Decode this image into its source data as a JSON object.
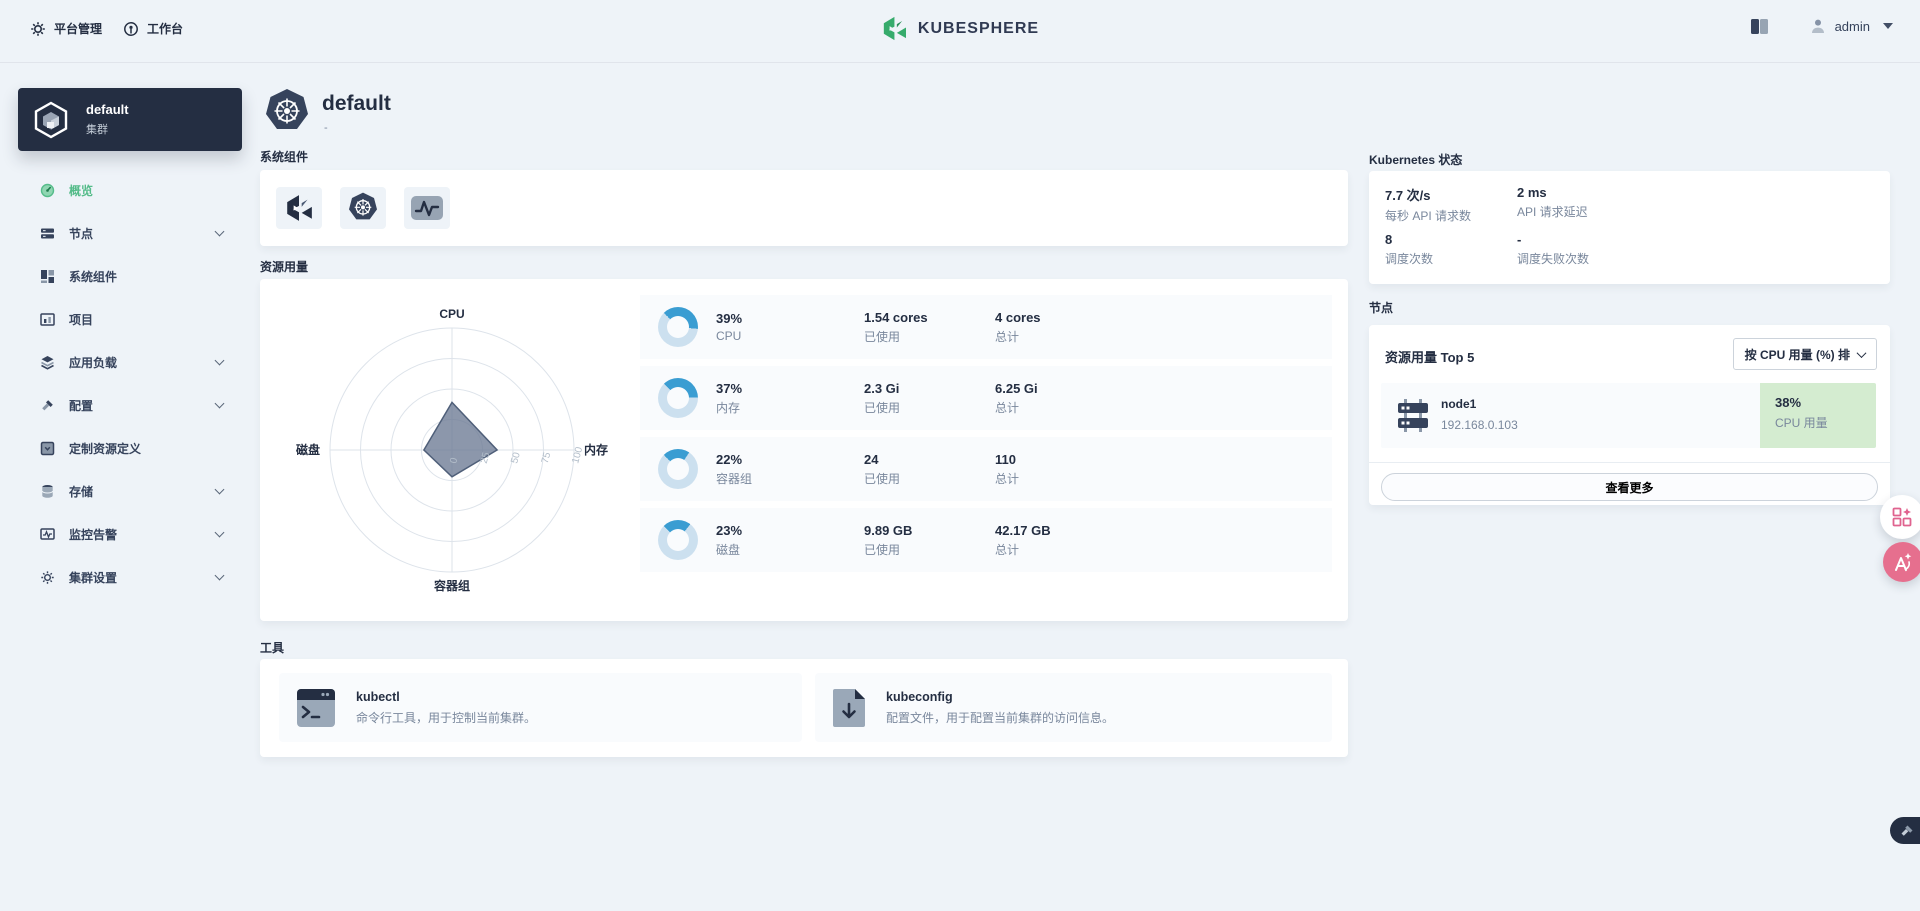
{
  "topbar": {
    "platform": "平台管理",
    "workbench": "工作台",
    "brand": "KUBESPHERE",
    "user": "admin"
  },
  "sidebar": {
    "cluster_name": "default",
    "cluster_kind": "集群",
    "items": [
      {
        "label": "概览",
        "active": true,
        "expandable": false
      },
      {
        "label": "节点",
        "active": false,
        "expandable": true
      },
      {
        "label": "系统组件",
        "active": false,
        "expandable": false
      },
      {
        "label": "项目",
        "active": false,
        "expandable": false
      },
      {
        "label": "应用负载",
        "active": false,
        "expandable": true
      },
      {
        "label": "配置",
        "active": false,
        "expandable": true
      },
      {
        "label": "定制资源定义",
        "active": false,
        "expandable": false
      },
      {
        "label": "存储",
        "active": false,
        "expandable": true
      },
      {
        "label": "监控告警",
        "active": false,
        "expandable": true
      },
      {
        "label": "集群设置",
        "active": false,
        "expandable": true
      }
    ]
  },
  "page": {
    "title": "default",
    "subtitle": "-",
    "components_label": "系统组件",
    "usage_label": "资源用量",
    "tools_label": "工具"
  },
  "usage": {
    "rows": [
      {
        "value": 39,
        "percent": "39%",
        "name": "CPU",
        "used": "1.54 cores",
        "used_label": "已使用",
        "total": "4 cores",
        "total_label": "总计"
      },
      {
        "value": 37,
        "percent": "37%",
        "name": "内存",
        "used": "2.3 Gi",
        "used_label": "已使用",
        "total": "6.25 Gi",
        "total_label": "总计"
      },
      {
        "value": 22,
        "percent": "22%",
        "name": "容器组",
        "used": "24",
        "used_label": "已使用",
        "total": "110",
        "total_label": "总计"
      },
      {
        "value": 23,
        "percent": "23%",
        "name": "磁盘",
        "used": "9.89 GB",
        "used_label": "已使用",
        "total": "42.17 GB",
        "total_label": "总计"
      }
    ]
  },
  "chart_data": {
    "type": "radar",
    "title": "资源用量",
    "categories": [
      "CPU",
      "内存",
      "容器组",
      "磁盘"
    ],
    "values": [
      39,
      37,
      22,
      23
    ],
    "ticks": [
      "0",
      "25",
      "50",
      "75",
      "100"
    ],
    "range": [
      0,
      100
    ],
    "grid": "circular-4-rings",
    "fill_color": "#6b7a93"
  },
  "tools": [
    {
      "name": "kubectl",
      "desc": "命令行工具，用于控制当前集群。"
    },
    {
      "name": "kubeconfig",
      "desc": "配置文件，用于配置当前集群的访问信息。"
    }
  ],
  "status": {
    "title": "Kubernetes 状态",
    "stats": [
      {
        "value": "7.7 次/s",
        "label": "每秒 API 请求数"
      },
      {
        "value": "2 ms",
        "label": "API 请求延迟"
      },
      {
        "value": "8",
        "label": "调度次数"
      },
      {
        "value": "-",
        "label": "调度失败次数"
      }
    ]
  },
  "nodes": {
    "title": "节点",
    "top_label": "资源用量 Top 5",
    "sort_label": "按 CPU 用量 (%) 排",
    "rows": [
      {
        "name": "node1",
        "ip": "192.168.0.103",
        "metric": "38%",
        "metric_label": "CPU 用量",
        "metric_value": 38
      }
    ],
    "more_label": "查看更多"
  },
  "colors": {
    "accent_green": "#55bc8a",
    "dark": "#242e42",
    "donut_arc": "#3a9dd2",
    "donut_track": "#cce0ef",
    "node_metric_bg": "#d4ecd0",
    "brand_green": "#36ab6c"
  }
}
